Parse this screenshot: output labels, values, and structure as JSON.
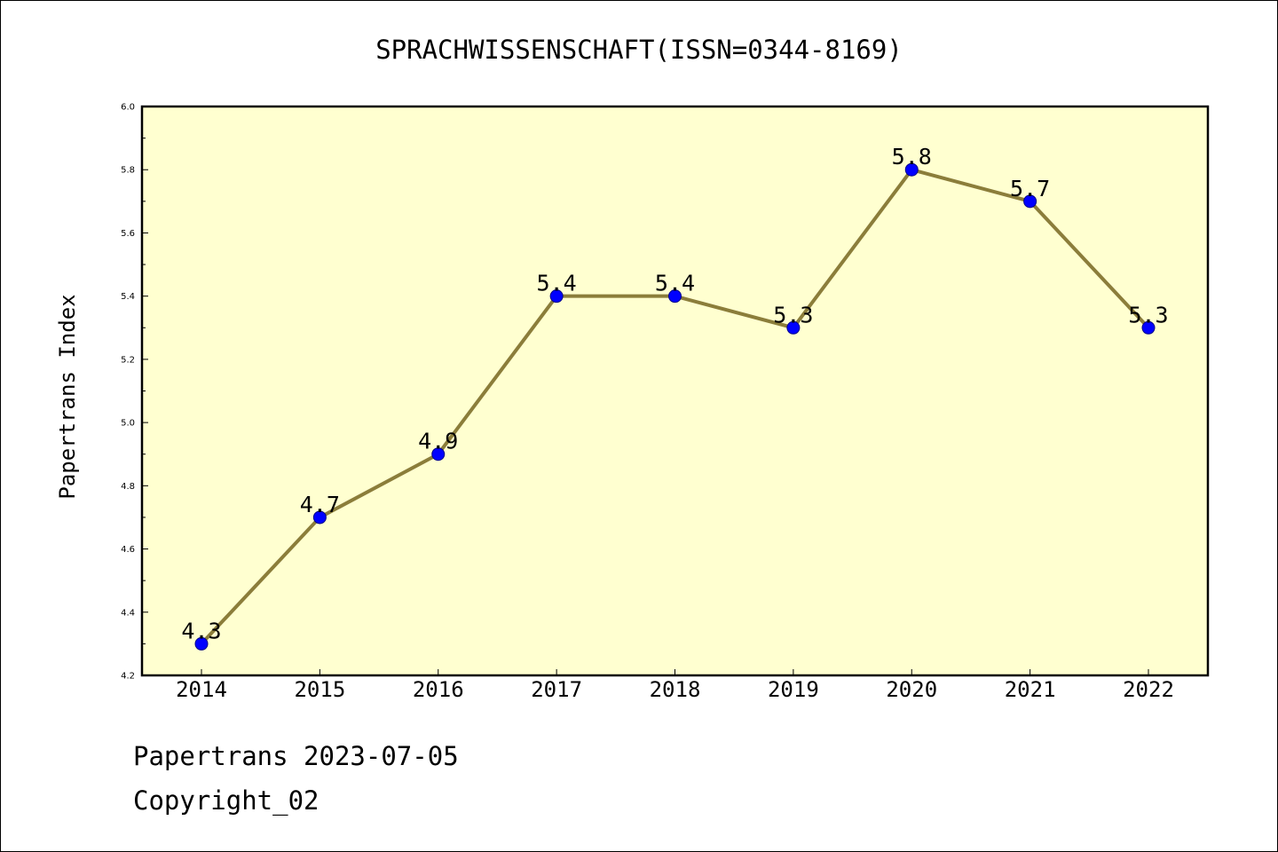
{
  "chart_data": {
    "type": "line",
    "title": "SPRACHWISSENSCHAFT(ISSN=0344-8169)",
    "xlabel": "",
    "ylabel": "Papertrans Index",
    "categories": [
      "2014",
      "2015",
      "2016",
      "2017",
      "2018",
      "2019",
      "2020",
      "2021",
      "2022"
    ],
    "series": [
      {
        "values": [
          4.3,
          4.7,
          4.9,
          5.4,
          5.4,
          5.3,
          5.8,
          5.7,
          5.3
        ],
        "labels": [
          "4.3",
          "4.7",
          "4.9",
          "5.4",
          "5.4",
          "5.3",
          "5.8",
          "5.7",
          "5.3"
        ]
      }
    ],
    "ylim": [
      4.2,
      6.0
    ],
    "y_ticks": [
      "4.2",
      "4.4",
      "4.6",
      "4.8",
      "5.0",
      "5.2",
      "5.4",
      "5.6",
      "5.8",
      "6.0"
    ],
    "grid": false,
    "legend": "none"
  },
  "footer": {
    "line1": "Papertrans 2023-07-05",
    "line2": "Copyright_02"
  },
  "colors": {
    "plot_background": "#ffffd0",
    "line": "#8b7d3a",
    "marker": "#0000ff",
    "axis": "#000000"
  }
}
